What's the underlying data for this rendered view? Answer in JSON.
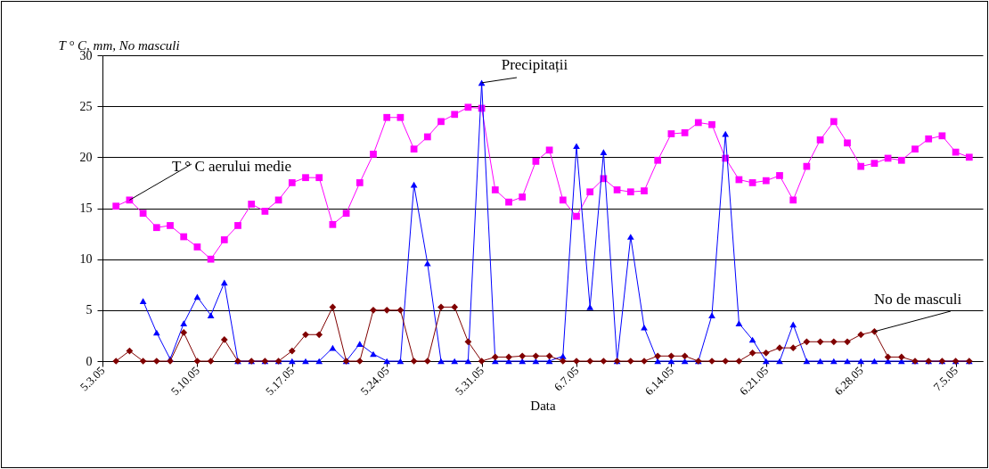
{
  "chart_data": {
    "type": "line",
    "xlabel": "Data",
    "ylabel": "T ° C, mm, No masculi",
    "x": [
      "--05-04",
      "--05-05",
      "--05-06",
      "--05-07",
      "--05-08",
      "--05-09",
      "--05-10",
      "--05-11",
      "--05-12",
      "--05-13",
      "--05-14",
      "--05-15",
      "--05-16",
      "--05-17",
      "--05-18",
      "--05-19",
      "--05-20",
      "--05-21",
      "--05-22",
      "--05-23",
      "--05-24",
      "--05-25",
      "--05-26",
      "--05-27",
      "--05-28",
      "--05-29",
      "--05-30",
      "--05-31",
      "--06-01",
      "--06-02",
      "--06-03",
      "--06-04",
      "--06-05",
      "--06-06",
      "--06-07",
      "--06-08",
      "--06-09",
      "--06-10",
      "--06-11",
      "--06-12",
      "--06-13",
      "--06-14",
      "--06-15",
      "--06-16",
      "--06-17",
      "--06-18",
      "--06-19",
      "--06-20",
      "--06-21",
      "--06-22",
      "--06-23",
      "--06-24",
      "--06-25",
      "--06-26",
      "--06-27",
      "--06-28",
      "--06-29",
      "--06-30",
      "--07-01",
      "--07-02",
      "--07-03",
      "--07-04",
      "--07-05",
      "--07-06"
    ],
    "series": [
      {
        "name": "T ° C aerului medie",
        "color": "#ff00ff",
        "marker": "square",
        "values": [
          15.2,
          15.8,
          14.5,
          13.1,
          13.3,
          12.2,
          11.2,
          10.0,
          11.9,
          13.3,
          15.4,
          14.7,
          15.8,
          17.5,
          18.0,
          18.0,
          13.4,
          14.5,
          17.5,
          20.3,
          23.9,
          23.9,
          20.8,
          22.0,
          23.5,
          24.2,
          24.9,
          24.8,
          16.8,
          15.6,
          16.1,
          19.6,
          20.7,
          15.8,
          14.2,
          16.6,
          17.9,
          16.8,
          16.6,
          16.7,
          19.7,
          22.3,
          22.4,
          23.4,
          23.2,
          19.9,
          17.8,
          17.5,
          17.7,
          18.2,
          15.8,
          19.1,
          21.7,
          23.5,
          21.4,
          19.1,
          19.4,
          19.9,
          19.7,
          20.8,
          21.8,
          22.1,
          20.5,
          20.0
        ]
      },
      {
        "name": "Precipitații",
        "color": "#0000ff",
        "marker": "triangle",
        "values": [
          null,
          null,
          5.9,
          2.8,
          0.2,
          3.7,
          6.3,
          4.5,
          7.7,
          0,
          0,
          0,
          0,
          0,
          0,
          0,
          1.3,
          0,
          1.7,
          0.7,
          0,
          0,
          17.3,
          9.6,
          0,
          0,
          0,
          27.3,
          0,
          0,
          0,
          0,
          0,
          0.5,
          21.1,
          5.3,
          20.5,
          0,
          12.2,
          3.3,
          0,
          0,
          0,
          0,
          4.5,
          22.3,
          3.7,
          2.1,
          0,
          0,
          3.6,
          0,
          0,
          0,
          0,
          0,
          0,
          0,
          0,
          0,
          0,
          0,
          0,
          0
        ]
      },
      {
        "name": "No de masculi",
        "color": "#800000",
        "marker": "diamond",
        "values": [
          0,
          1.0,
          0,
          0,
          0,
          2.8,
          0,
          0,
          2.1,
          0,
          0,
          0,
          0,
          1.0,
          2.6,
          2.6,
          5.3,
          0,
          0,
          5.0,
          5.0,
          5.0,
          0,
          0,
          5.3,
          5.3,
          1.9,
          0,
          0.4,
          0.4,
          0.5,
          0.5,
          0.5,
          0,
          0,
          0,
          0,
          0,
          0,
          0,
          0.5,
          0.5,
          0.5,
          0,
          0,
          0,
          0,
          0.8,
          0.8,
          1.3,
          1.3,
          1.9,
          1.9,
          1.9,
          1.9,
          2.6,
          2.9,
          0.4,
          0.4,
          0,
          0,
          0,
          0,
          0
        ]
      }
    ],
    "xlim": [
      "--05-03",
      "--07-07"
    ],
    "xticks": [
      {
        "value": "--05-03",
        "label": "5.3.05"
      },
      {
        "value": "--05-10",
        "label": "5.10.05"
      },
      {
        "value": "--05-17",
        "label": "5.17.05"
      },
      {
        "value": "--05-24",
        "label": "5.24.05"
      },
      {
        "value": "--05-31",
        "label": "5.31.05"
      },
      {
        "value": "--06-07",
        "label": "6.7.05"
      },
      {
        "value": "--06-14",
        "label": "6.14.05"
      },
      {
        "value": "--06-21",
        "label": "6.21.05"
      },
      {
        "value": "--06-28",
        "label": "6.28.05"
      },
      {
        "value": "--07-05",
        "label": "7.5.05"
      }
    ],
    "ylim": [
      0,
      30
    ],
    "yticks": [
      0,
      5,
      10,
      15,
      20,
      25,
      30
    ],
    "grid": "y"
  }
}
